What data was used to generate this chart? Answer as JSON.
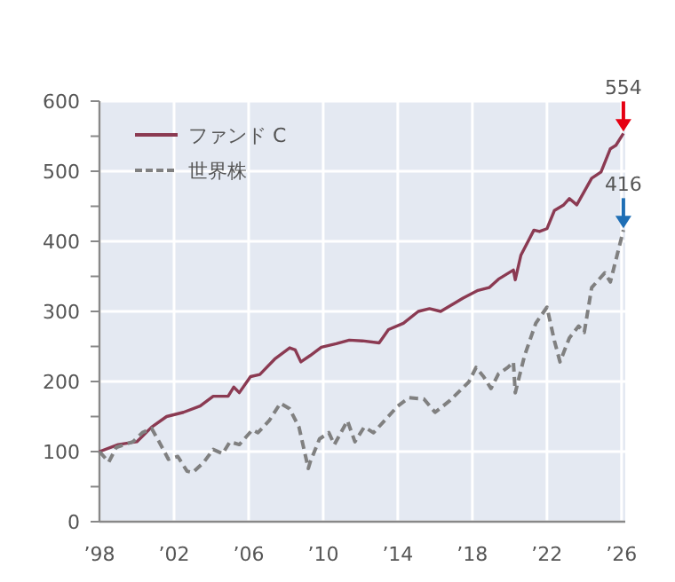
{
  "chart_data": {
    "type": "line",
    "xlim": [
      1998,
      2026.2
    ],
    "ylim": [
      0,
      600
    ],
    "xticks": [
      {
        "value": 1998,
        "label": "’98"
      },
      {
        "value": 2002,
        "label": "’02"
      },
      {
        "value": 2006,
        "label": "’06"
      },
      {
        "value": 2010,
        "label": "’10"
      },
      {
        "value": 2014,
        "label": "’14"
      },
      {
        "value": 2018,
        "label": "’18"
      },
      {
        "value": 2022,
        "label": "’22"
      },
      {
        "value": 2026,
        "label": "’26"
      }
    ],
    "yticks": [
      0,
      {
        "value": 50,
        "label": null
      },
      100,
      {
        "value": 150,
        "label": null
      },
      200,
      {
        "value": 250,
        "label": null
      },
      300,
      {
        "value": 350,
        "label": null
      },
      400,
      {
        "value": 450,
        "label": null
      },
      500,
      {
        "value": 550,
        "label": null
      },
      600
    ],
    "grid": true,
    "legend": "top left",
    "series": [
      {
        "name": "ファンド C",
        "color": "#8b3a52",
        "line_style": "solid",
        "x": [
          1998,
          1999,
          2000,
          2000.8,
          2001.6,
          2002.5,
          2003.4,
          2004.1,
          2004.9,
          2005.2,
          2005.5,
          2006.1,
          2006.6,
          2007.4,
          2008.2,
          2008.5,
          2008.8,
          2009.3,
          2009.9,
          2010.7,
          2011.4,
          2012.1,
          2013.0,
          2013.5,
          2014.3,
          2015.1,
          2015.7,
          2016.3,
          2017.5,
          2018.3,
          2018.9,
          2019.4,
          2020.2,
          2020.3,
          2020.6,
          2021.3,
          2021.6,
          2022.0,
          2022.4,
          2022.9,
          2023.2,
          2023.6,
          2024.4,
          2024.9,
          2025.4,
          2025.7,
          2026.1
        ],
        "values": [
          100,
          110,
          114,
          135,
          150,
          156,
          165,
          179,
          179,
          192,
          184,
          207,
          210,
          232,
          248,
          245,
          228,
          237,
          249,
          254,
          259,
          258,
          255,
          274,
          283,
          300,
          304,
          300,
          319,
          330,
          334,
          346,
          359,
          345,
          380,
          416,
          414,
          418,
          444,
          452,
          461,
          452,
          490,
          499,
          532,
          537,
          554
        ]
      },
      {
        "name": "世界株",
        "color": "#808080",
        "line_style": "dashed",
        "x": [
          1998,
          1998.5,
          1998.9,
          1999.8,
          2000.3,
          2000.8,
          2001.2,
          2001.7,
          2002.2,
          2002.7,
          2003.0,
          2003.6,
          2004.1,
          2004.6,
          2005.0,
          2005.5,
          2006.2,
          2006.5,
          2007.1,
          2007.7,
          2008.2,
          2008.7,
          2009.2,
          2009.3,
          2009.8,
          2010.3,
          2010.6,
          2011.3,
          2011.7,
          2012.2,
          2012.7,
          2014.0,
          2014.6,
          2015.4,
          2016.0,
          2016.8,
          2017.8,
          2018.2,
          2018.6,
          2019.0,
          2019.4,
          2019.9,
          2020.2,
          2020.3,
          2020.8,
          2021.4,
          2022.0,
          2022.4,
          2022.7,
          2023.2,
          2023.7,
          2024.0,
          2024.4,
          2025.1,
          2025.4,
          2026.1
        ],
        "values": [
          100,
          85,
          106,
          114,
          127,
          133,
          114,
          89,
          93,
          72,
          70,
          85,
          103,
          97,
          114,
          110,
          131,
          127,
          144,
          169,
          161,
          135,
          76,
          85,
          118,
          127,
          110,
          144,
          114,
          135,
          127,
          165,
          177,
          175,
          156,
          173,
          199,
          220,
          207,
          190,
          211,
          220,
          228,
          184,
          237,
          283,
          306,
          258,
          228,
          262,
          279,
          270,
          334,
          355,
          342,
          416
        ]
      }
    ],
    "annotations": [
      {
        "text": "554",
        "x": 2026.1,
        "y": 554
      },
      {
        "text": "416",
        "x": 2026.1,
        "y": 416
      }
    ]
  }
}
